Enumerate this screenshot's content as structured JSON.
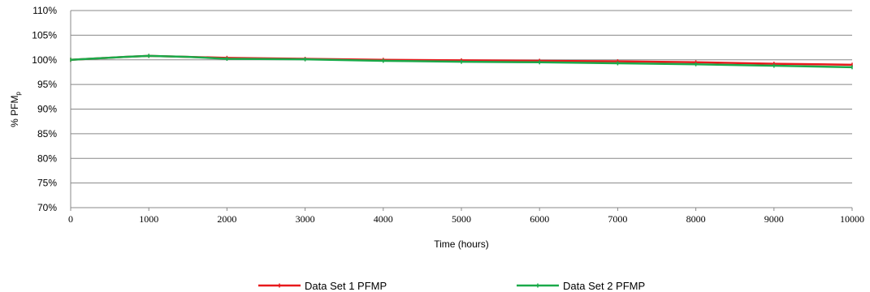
{
  "chart_data": {
    "type": "line",
    "title": "",
    "xlabel": "Time (hours)",
    "ylabel": {
      "main": "% PFM",
      "sub": "p"
    },
    "xlim": [
      0,
      10000
    ],
    "ylim": [
      70,
      110
    ],
    "x_ticks": [
      0,
      1000,
      2000,
      3000,
      4000,
      5000,
      6000,
      7000,
      8000,
      9000,
      10000
    ],
    "y_ticks": [
      70,
      75,
      80,
      85,
      90,
      95,
      100,
      105,
      110
    ],
    "y_tick_suffix": "%",
    "grid": "horizontal",
    "legend_position": "bottom",
    "series": [
      {
        "name": "Data Set 1 PFMP",
        "color": "#e8191c",
        "x": [
          0,
          700,
          1000,
          1500,
          2000,
          3000,
          4000,
          5000,
          6000,
          7000,
          8000,
          9000,
          10000
        ],
        "values": [
          100.0,
          100.6,
          100.8,
          100.6,
          100.4,
          100.2,
          100.0,
          99.9,
          99.8,
          99.7,
          99.5,
          99.2,
          99.0
        ]
      },
      {
        "name": "Data Set 2 PFMP",
        "color": "#1aaa4a",
        "x": [
          0,
          700,
          1000,
          1500,
          2000,
          3000,
          4000,
          5000,
          6000,
          7000,
          8000,
          9000,
          10000
        ],
        "values": [
          100.0,
          100.6,
          100.8,
          100.6,
          100.2,
          100.1,
          99.8,
          99.6,
          99.5,
          99.3,
          99.1,
          98.8,
          98.5
        ]
      }
    ]
  }
}
